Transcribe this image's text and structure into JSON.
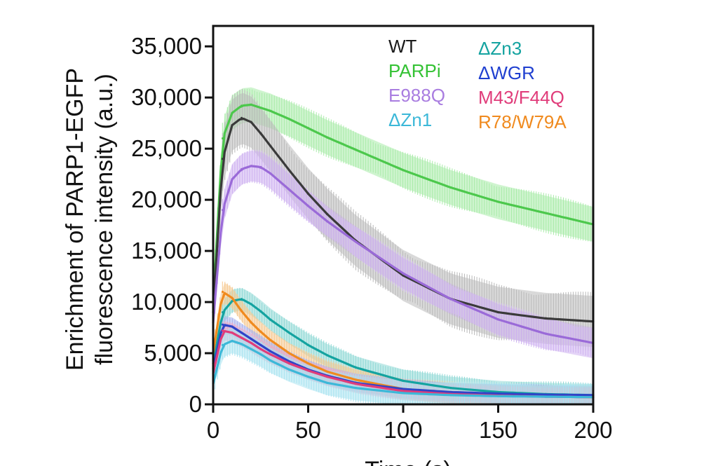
{
  "chart_data": {
    "type": "line",
    "title": "",
    "xlabel": "Time (s)",
    "ylabel_line1": "Enrichment of PARP1-EGFP",
    "ylabel_line2": "fluorescence intensity (a.u.)",
    "xlim": [
      0,
      200
    ],
    "ylim": [
      0,
      37000
    ],
    "x_ticks": [
      0,
      50,
      100,
      150,
      200
    ],
    "x_tick_labels": [
      "0",
      "50",
      "100",
      "150",
      "200"
    ],
    "y_ticks": [
      0,
      5000,
      10000,
      15000,
      20000,
      25000,
      30000,
      35000
    ],
    "y_tick_labels": [
      "0",
      "5,000",
      "10,000",
      "15,000",
      "20,000",
      "25,000",
      "30,000",
      "35,000"
    ],
    "grid": false,
    "error_bars": true,
    "legend": {
      "placement": "top-right",
      "entries": [
        {
          "label": "WT",
          "color": "#1a1a1a"
        },
        {
          "label": "PARPi",
          "color": "#34c234"
        },
        {
          "label": "E988Q",
          "color": "#a97de0"
        },
        {
          "label": "ΔZn1",
          "color": "#3cb8d8"
        },
        {
          "label": "ΔZn3",
          "color": "#14a3a0"
        },
        {
          "label": "ΔWGR",
          "color": "#1f3fd0"
        },
        {
          "label": "M43/F44Q",
          "color": "#e03c7a"
        },
        {
          "label": "R78/W79A",
          "color": "#f08a1e"
        }
      ]
    },
    "x": [
      0,
      5,
      10,
      15,
      20,
      25,
      30,
      40,
      50,
      60,
      75,
      100,
      125,
      150,
      175,
      200
    ],
    "series": [
      {
        "name": "WT",
        "color": "#3a3a3a",
        "band": "#b9b9b9",
        "err": 2500,
        "values": [
          9000,
          24000,
          27300,
          28000,
          27600,
          26500,
          25300,
          22900,
          20600,
          18600,
          16000,
          12600,
          10300,
          9000,
          8400,
          8100
        ]
      },
      {
        "name": "PARPi",
        "color": "#4cc84c",
        "band": "#a8eba8",
        "err": 1700,
        "values": [
          10000,
          26000,
          28500,
          29200,
          29300,
          29000,
          28700,
          27900,
          27000,
          26100,
          24900,
          22900,
          21200,
          19800,
          18700,
          17600
        ]
      },
      {
        "name": "E988Q",
        "color": "#9a6ad8",
        "band": "#cdb0f0",
        "err": 1500,
        "values": [
          8000,
          19000,
          22000,
          23000,
          23300,
          23200,
          22600,
          21000,
          19400,
          17900,
          15900,
          12800,
          10300,
          8300,
          6900,
          6000
        ]
      },
      {
        "name": "ΔZn1",
        "color": "#3cb8d8",
        "band": "#a9e3f0",
        "err": 1200,
        "values": [
          2000,
          5800,
          6200,
          5900,
          5400,
          4900,
          4300,
          3400,
          2700,
          2100,
          1600,
          1100,
          900,
          800,
          750,
          700
        ]
      },
      {
        "name": "ΔZn3",
        "color": "#14a3a0",
        "band": "#8fd9d6",
        "err": 1100,
        "values": [
          4000,
          9000,
          10100,
          10300,
          9800,
          9100,
          8300,
          7000,
          5800,
          4800,
          3600,
          2300,
          1600,
          1200,
          1000,
          900
        ]
      },
      {
        "name": "ΔWGR",
        "color": "#3044c8",
        "band": "#a7b2ee",
        "err": 900,
        "values": [
          3500,
          7800,
          7600,
          7000,
          6400,
          5800,
          5200,
          4200,
          3400,
          2800,
          2100,
          1500,
          1200,
          1050,
          950,
          900
        ]
      },
      {
        "name": "M43/F44Q",
        "color": "#e03c7a",
        "band": "#f0a9c4",
        "err": 900,
        "values": [
          3000,
          7200,
          7000,
          6500,
          6000,
          5400,
          4900,
          4000,
          3300,
          2700,
          2000,
          1300,
          1000,
          850,
          750,
          700
        ]
      },
      {
        "name": "R78/W79A",
        "color": "#f08a1e",
        "band": "#f6c890",
        "err": 1000,
        "values": [
          5000,
          11000,
          10400,
          9100,
          8000,
          7100,
          6300,
          5000,
          4000,
          3200,
          2400,
          1500,
          1100,
          900,
          800,
          700
        ]
      }
    ]
  }
}
